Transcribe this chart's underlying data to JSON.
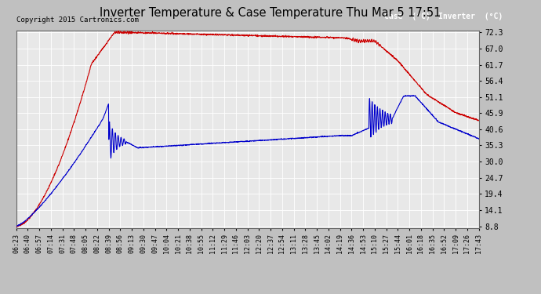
{
  "title": "Inverter Temperature & Case Temperature Thu Mar 5 17:51",
  "copyright": "Copyright 2015 Cartronics.com",
  "background_color": "#c0c0c0",
  "plot_bg_color": "#e8e8e8",
  "grid_color": "#ffffff",
  "yticks": [
    8.8,
    14.1,
    19.4,
    24.7,
    30.0,
    35.3,
    40.6,
    45.9,
    51.1,
    56.4,
    61.7,
    67.0,
    72.3
  ],
  "xtick_labels": [
    "06:23",
    "06:40",
    "06:57",
    "07:14",
    "07:31",
    "07:48",
    "08:05",
    "08:22",
    "08:39",
    "08:56",
    "09:13",
    "09:30",
    "09:47",
    "10:04",
    "10:21",
    "10:38",
    "10:55",
    "11:12",
    "11:29",
    "11:46",
    "12:03",
    "12:20",
    "12:37",
    "12:54",
    "13:11",
    "13:28",
    "13:45",
    "14:02",
    "14:19",
    "14:36",
    "14:53",
    "15:10",
    "15:27",
    "15:44",
    "16:01",
    "16:18",
    "16:35",
    "16:52",
    "17:09",
    "17:26",
    "17:43"
  ],
  "case_color": "#0000cc",
  "inverter_color": "#cc0000",
  "legend_case_bg": "#0000bb",
  "legend_inv_bg": "#cc0000",
  "ylim_min": 8.8,
  "ylim_max": 72.3
}
